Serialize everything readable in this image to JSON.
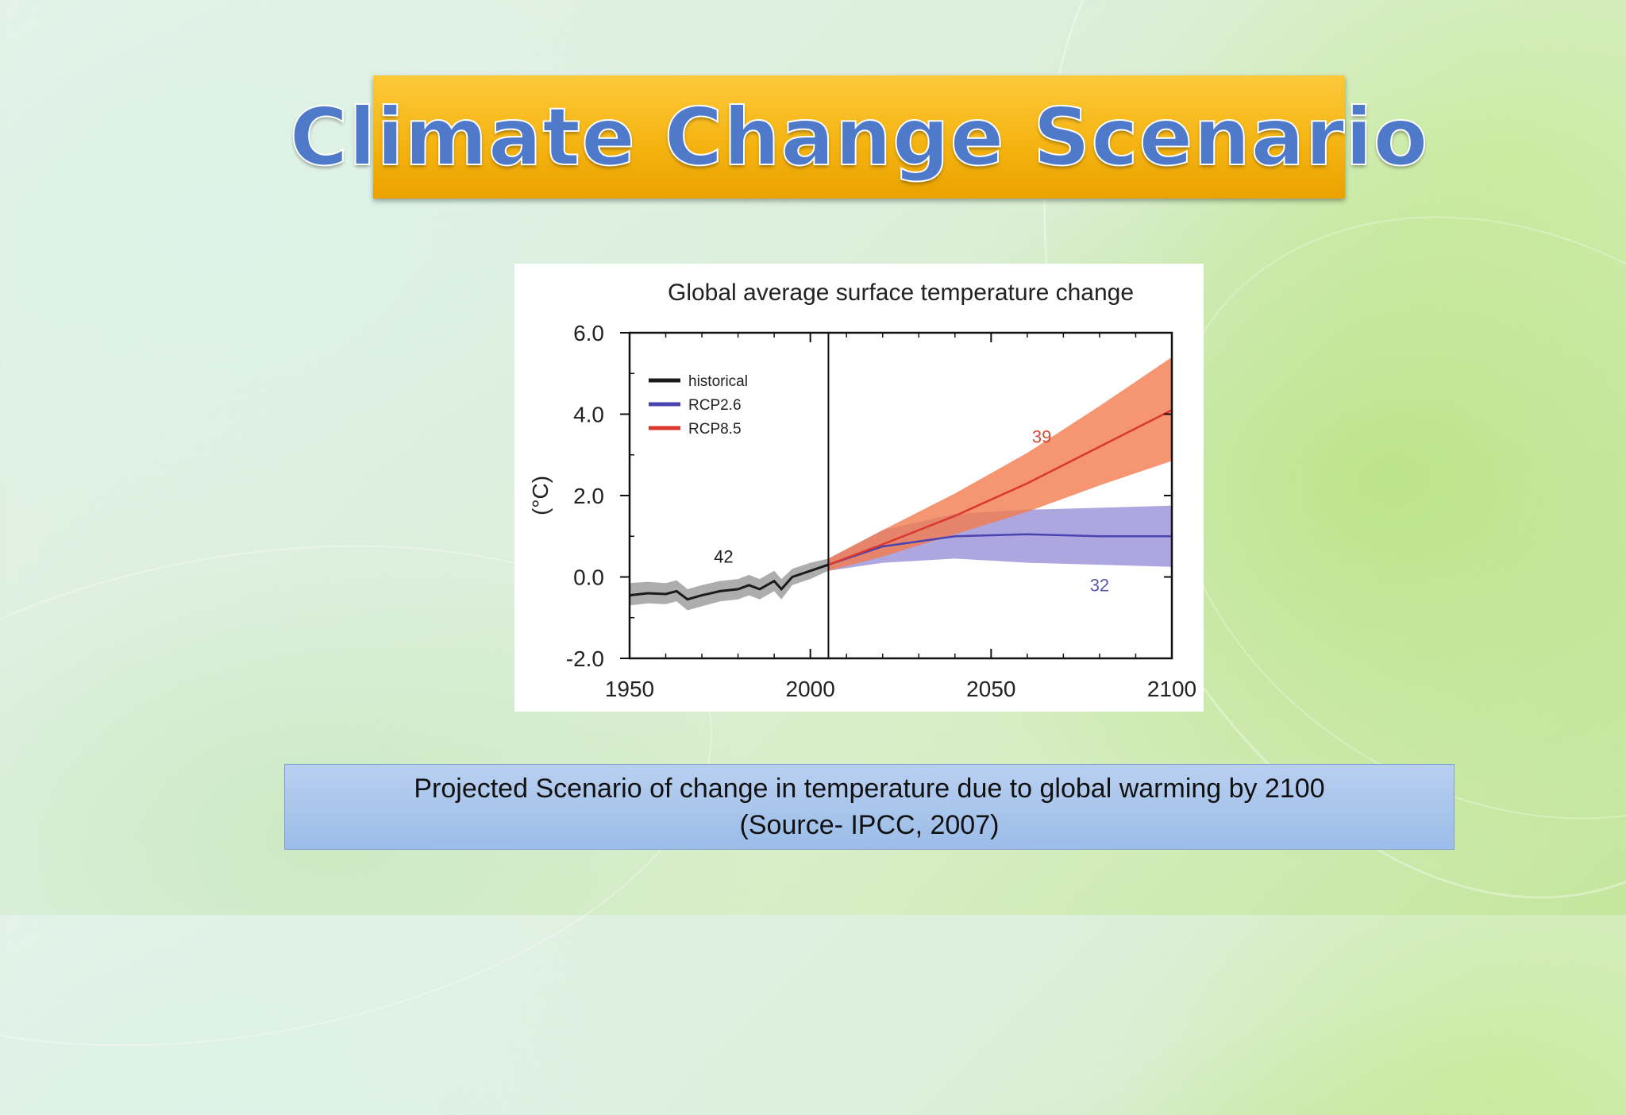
{
  "slide": {
    "title": "Climate Change Scenario",
    "caption_line1": "Projected Scenario of change in temperature due to global warming by 2100",
    "caption_line2": "(Source- IPCC, 2007)"
  },
  "colors": {
    "historical": "#1a1a1a",
    "rcp26": "#4b43b0",
    "rcp85": "#d9382a",
    "rcp85_band": "#f27a4e",
    "rcp26_band": "#8c80d0",
    "historical_band": "#8a8a8a"
  },
  "chart_data": {
    "type": "line",
    "title": "Global average surface temperature change",
    "xlabel": "",
    "ylabel": "(°C)",
    "xlim": [
      1950,
      2100
    ],
    "ylim": [
      -2.0,
      6.0
    ],
    "x_ticks": [
      "1950",
      "2000",
      "2050",
      "2100"
    ],
    "y_ticks": [
      "6.0",
      "4.0",
      "2.0",
      "0.0",
      "-2.0"
    ],
    "divider_x": 2005,
    "legend_position": "top-left",
    "series": [
      {
        "name": "historical",
        "x": [
          1950,
          1955,
          1960,
          1963,
          1966,
          1970,
          1975,
          1980,
          1983,
          1986,
          1990,
          1992,
          1995,
          2000,
          2005
        ],
        "values": [
          -0.45,
          -0.4,
          -0.42,
          -0.35,
          -0.55,
          -0.45,
          -0.35,
          -0.3,
          -0.2,
          -0.3,
          -0.1,
          -0.3,
          0.0,
          0.15,
          0.3
        ],
        "lower": [
          -0.7,
          -0.65,
          -0.67,
          -0.6,
          -0.82,
          -0.72,
          -0.6,
          -0.55,
          -0.45,
          -0.55,
          -0.35,
          -0.55,
          -0.2,
          -0.05,
          0.15
        ],
        "upper": [
          -0.15,
          -0.12,
          -0.15,
          -0.08,
          -0.3,
          -0.2,
          -0.1,
          -0.05,
          0.05,
          -0.05,
          0.15,
          -0.05,
          0.2,
          0.35,
          0.45
        ],
        "annotation": "42"
      },
      {
        "name": "RCP2.6",
        "x": [
          2005,
          2020,
          2040,
          2060,
          2080,
          2100
        ],
        "values": [
          0.3,
          0.75,
          1.0,
          1.05,
          1.0,
          1.0
        ],
        "lower": [
          0.15,
          0.35,
          0.45,
          0.35,
          0.3,
          0.25
        ],
        "upper": [
          0.45,
          1.15,
          1.55,
          1.65,
          1.7,
          1.75
        ],
        "annotation": "32"
      },
      {
        "name": "RCP8.5",
        "x": [
          2005,
          2020,
          2040,
          2060,
          2080,
          2100
        ],
        "values": [
          0.3,
          0.8,
          1.5,
          2.3,
          3.2,
          4.1
        ],
        "lower": [
          0.15,
          0.5,
          1.05,
          1.6,
          2.25,
          2.85
        ],
        "upper": [
          0.45,
          1.15,
          2.05,
          3.05,
          4.2,
          5.4
        ],
        "annotation": "39"
      }
    ]
  }
}
